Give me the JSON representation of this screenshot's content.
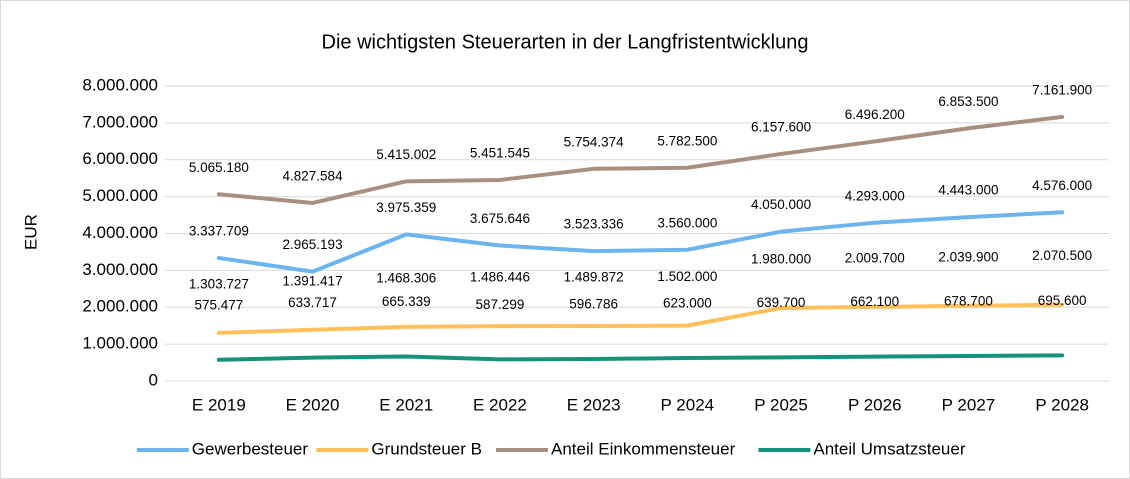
{
  "chart_data": {
    "type": "line",
    "title": "Die wichtigsten Steuerarten in der Langfristentwicklung",
    "y_label": "EUR",
    "categories": [
      "E 2019",
      "E 2020",
      "E 2021",
      "E 2022",
      "E 2023",
      "P 2024",
      "P 2025",
      "P 2026",
      "P 2027",
      "P 2028"
    ],
    "series": [
      {
        "name": "Gewerbesteuer",
        "color": "#6cb4ee",
        "values": [
          3337709,
          2965193,
          3975359,
          3675646,
          3523336,
          3560000,
          4050000,
          4293000,
          4443000,
          4576000
        ],
        "value_labels": [
          "3.337.709",
          "2.965.193",
          "3.975.359",
          "3.675.646",
          "3.523.336",
          "3.560.000",
          "4.050.000",
          "4.293.000",
          "4.443.000",
          "4.576.000"
        ]
      },
      {
        "name": "Grundsteuer B",
        "color": "#ffc05a",
        "values": [
          1303727,
          1391417,
          1468306,
          1486446,
          1489872,
          1502000,
          1980000,
          2009700,
          2039900,
          2070500
        ],
        "value_labels": [
          "1.303.727",
          "1.391.417",
          "1.468.306",
          "1.486.446",
          "1.489.872",
          "1.502.000",
          "1.980.000",
          "2.009.700",
          "2.039.900",
          "2.070.500"
        ]
      },
      {
        "name": "Anteil Einkommensteuer",
        "color": "#a89080",
        "values": [
          5065180,
          4827584,
          5415002,
          5451545,
          5754374,
          5782500,
          6157600,
          6496200,
          6853500,
          7161900
        ],
        "value_labels": [
          "5.065.180",
          "4.827.584",
          "5.415.002",
          "5.451.545",
          "5.754.374",
          "5.782.500",
          "6.157.600",
          "6.496.200",
          "6.853.500",
          "7.161.900"
        ]
      },
      {
        "name": "Anteil Umsatzsteuer",
        "color": "#14937a",
        "values": [
          575477,
          633717,
          665339,
          587299,
          596786,
          623000,
          639700,
          662100,
          678700,
          695600
        ],
        "value_labels": [
          "575.477",
          "633.717",
          "665.339",
          "587.299",
          "596.786",
          "623.000",
          "639.700",
          "662.100",
          "678.700",
          "695.600"
        ]
      }
    ],
    "ylim": [
      0,
      8000000
    ],
    "yticks": [
      0,
      {
        "value": 1000000,
        "label": "1.000.000"
      },
      {
        "value": 2000000,
        "label": "2.000.000"
      },
      {
        "value": 3000000,
        "label": "3.000.000"
      },
      {
        "value": 4000000,
        "label": "4.000.000"
      },
      {
        "value": 5000000,
        "label": "5.000.000"
      },
      {
        "value": 6000000,
        "label": "6.000.000"
      },
      {
        "value": 7000000,
        "label": "7.000.000"
      },
      {
        "value": 8000000,
        "label": "8.000.000"
      }
    ],
    "grid": true,
    "legend": "bottom"
  }
}
